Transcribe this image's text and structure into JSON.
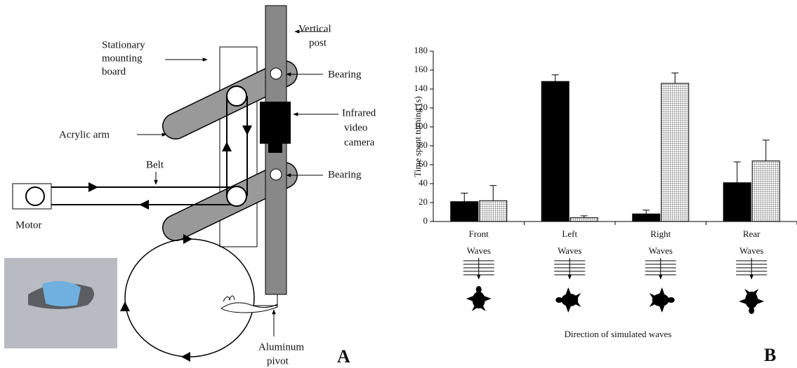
{
  "diagram": {
    "vertical_post": [
      "Vertical",
      "post"
    ],
    "mounting_board": [
      "Stationary",
      "mounting",
      "board"
    ],
    "bearing_top": "Bearing",
    "camera": [
      "Infrared",
      "video",
      "camera"
    ],
    "acrylic_arm": "Acrylic arm",
    "belt": "Belt",
    "bearing_bottom": "Bearing",
    "motor": "Motor",
    "pivot": [
      "Aluminum",
      "pivot"
    ],
    "panel_label": "A"
  },
  "chart_panel_label": "B",
  "chart_data": {
    "type": "bar",
    "y_label": "Time spent turning (s)",
    "x_label": "Direction of simulated waves",
    "categories": [
      "Front",
      "Left",
      "Right",
      "Rear"
    ],
    "annotations": [
      "Waves",
      "Waves",
      "Waves",
      "Waves"
    ],
    "series": [
      {
        "color": "#000000",
        "hatch": false,
        "values": [
          21,
          148,
          8,
          41
        ],
        "errors": [
          9,
          7,
          4,
          22
        ]
      },
      {
        "color": "#ffffff",
        "hatch": true,
        "values": [
          22,
          4,
          146,
          64
        ],
        "errors": [
          16,
          2,
          11,
          22
        ]
      }
    ],
    "ylim": [
      0,
      180
    ],
    "yticks": [
      0,
      20,
      40,
      60,
      80,
      100,
      120,
      140,
      160,
      180
    ],
    "grid": false
  }
}
